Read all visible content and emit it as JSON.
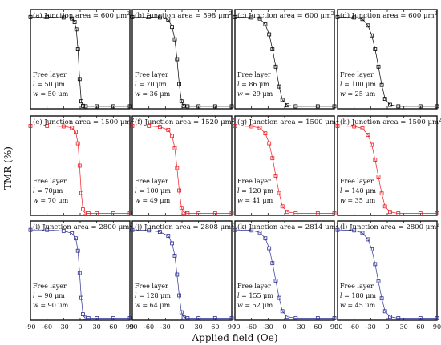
{
  "figure": {
    "ylabel": "TMR (%)",
    "xlabel": "Applied field (Oe)",
    "xticks": [
      "-90",
      "-60",
      "-30",
      "0",
      "30",
      "60",
      "90"
    ],
    "free_layer_label": "Free layer",
    "junction_prefix": "Junction area = ",
    "area_unit": "μm",
    "area_exp": "2"
  },
  "chart_data": [
    {
      "type": "scatter",
      "panel": "(a)",
      "junction_area": "600",
      "l": "50 μm",
      "w": "50 μm",
      "color": "#000000",
      "xlim": [
        -90,
        90
      ],
      "ylim": [
        0,
        200
      ],
      "series": [
        {
          "x": [
            -90,
            -60,
            -30,
            -15,
            -10,
            -7,
            -4,
            -1,
            2,
            5,
            10,
            30,
            60,
            90
          ],
          "y": [
            185,
            185,
            184,
            182,
            175,
            160,
            120,
            60,
            15,
            6,
            5,
            5,
            5,
            5
          ]
        }
      ]
    },
    {
      "type": "scatter",
      "panel": "(b)",
      "junction_area": "598",
      "l": "70 μm",
      "w": "36 μm",
      "color": "#000000",
      "xlim": [
        -90,
        90
      ],
      "ylim": [
        0,
        200
      ],
      "series": [
        {
          "x": [
            -90,
            -60,
            -40,
            -25,
            -18,
            -13,
            -9,
            -5,
            -1,
            3,
            10,
            30,
            60,
            90
          ],
          "y": [
            185,
            185,
            184,
            180,
            165,
            140,
            100,
            50,
            15,
            6,
            5,
            5,
            5,
            5
          ]
        }
      ]
    },
    {
      "type": "scatter",
      "panel": "(c)",
      "junction_area": "600",
      "l": "86 μm",
      "w": "29 μm",
      "color": "#000000",
      "xlim": [
        -90,
        90
      ],
      "ylim": [
        0,
        200
      ],
      "series": [
        {
          "x": [
            -90,
            -60,
            -45,
            -35,
            -28,
            -22,
            -16,
            -10,
            -4,
            5,
            20,
            60,
            90
          ],
          "y": [
            185,
            184,
            182,
            170,
            150,
            120,
            85,
            45,
            18,
            7,
            5,
            5,
            5
          ]
        }
      ]
    },
    {
      "type": "scatter",
      "panel": "(d)",
      "junction_area": "600",
      "l": "100 μm",
      "w": "25 μm",
      "color": "#000000",
      "xlim": [
        -90,
        90
      ],
      "ylim": [
        0,
        200
      ],
      "series": [
        {
          "x": [
            -90,
            -60,
            -45,
            -35,
            -28,
            -22,
            -16,
            -10,
            -4,
            5,
            20,
            60,
            90
          ],
          "y": [
            185,
            184,
            181,
            168,
            148,
            120,
            85,
            48,
            20,
            8,
            5,
            5,
            5
          ]
        }
      ]
    },
    {
      "type": "scatter",
      "panel": "(e)",
      "junction_area": "1500",
      "l": "70μm",
      "w": "70 μm",
      "color": "#ee1c24",
      "xlim": [
        -90,
        90
      ],
      "ylim": [
        0,
        200
      ],
      "series": [
        {
          "x": [
            -90,
            -60,
            -30,
            -15,
            -8,
            -4,
            -1,
            2,
            5,
            8,
            15,
            30,
            60,
            90
          ],
          "y": [
            180,
            180,
            179,
            176,
            168,
            145,
            100,
            45,
            12,
            5,
            4,
            4,
            4,
            4
          ]
        }
      ]
    },
    {
      "type": "scatter",
      "panel": "(f)",
      "junction_area": "1520",
      "l": "100 μm",
      "w": "49 μm",
      "color": "#ee1c24",
      "xlim": [
        -90,
        90
      ],
      "ylim": [
        0,
        200
      ],
      "series": [
        {
          "x": [
            -90,
            -60,
            -40,
            -25,
            -18,
            -13,
            -9,
            -5,
            -1,
            3,
            10,
            30,
            60,
            90
          ],
          "y": [
            180,
            180,
            178,
            172,
            160,
            135,
            95,
            50,
            15,
            6,
            4,
            4,
            4,
            4
          ]
        }
      ]
    },
    {
      "type": "scatter",
      "panel": "(g)",
      "junction_area": "1500",
      "l": "120 μm",
      "w": "41 μm",
      "color": "#ee1c24",
      "xlim": [
        -90,
        90
      ],
      "ylim": [
        0,
        200
      ],
      "series": [
        {
          "x": [
            -90,
            -60,
            -45,
            -35,
            -28,
            -22,
            -16,
            -10,
            -4,
            5,
            20,
            60,
            90
          ],
          "y": [
            180,
            179,
            176,
            165,
            145,
            115,
            80,
            45,
            18,
            7,
            4,
            4,
            4
          ]
        }
      ]
    },
    {
      "type": "scatter",
      "panel": "(h)",
      "junction_area": "1500",
      "l": "140 μm",
      "w": "35 μm",
      "color": "#ee1c24",
      "xlim": [
        -90,
        90
      ],
      "ylim": [
        0,
        200
      ],
      "series": [
        {
          "x": [
            -90,
            -60,
            -45,
            -35,
            -28,
            -22,
            -16,
            -10,
            -4,
            5,
            20,
            60,
            90
          ],
          "y": [
            180,
            179,
            175,
            162,
            142,
            112,
            78,
            44,
            18,
            7,
            4,
            4,
            4
          ]
        }
      ]
    },
    {
      "type": "scatter",
      "panel": "(i)",
      "junction_area": "2800",
      "l": "90 μm",
      "w": "90 μm",
      "color": "#2e3192",
      "xlim": [
        -90,
        90
      ],
      "ylim": [
        0,
        200
      ],
      "series": [
        {
          "x": [
            -90,
            -60,
            -30,
            -15,
            -8,
            -4,
            -1,
            2,
            5,
            8,
            15,
            30,
            60,
            90
          ],
          "y": [
            182,
            182,
            180,
            175,
            165,
            140,
            95,
            45,
            12,
            5,
            4,
            4,
            4,
            4
          ]
        }
      ]
    },
    {
      "type": "scatter",
      "panel": "(j)",
      "junction_area": "2808",
      "l": "128 μm",
      "w": "64 μm",
      "color": "#2e3192",
      "xlim": [
        -90,
        90
      ],
      "ylim": [
        0,
        200
      ],
      "series": [
        {
          "x": [
            -90,
            -60,
            -40,
            -25,
            -18,
            -13,
            -9,
            -5,
            -1,
            3,
            10,
            30,
            60,
            90
          ],
          "y": [
            182,
            181,
            178,
            170,
            155,
            130,
            92,
            50,
            16,
            6,
            4,
            4,
            4,
            4
          ]
        }
      ]
    },
    {
      "type": "scatter",
      "panel": "(k)",
      "junction_area": "2814",
      "l": "155 μm",
      "w": "52 μm",
      "color": "#2e3192",
      "xlim": [
        -90,
        90
      ],
      "ylim": [
        0,
        200
      ],
      "series": [
        {
          "x": [
            -90,
            -60,
            -45,
            -35,
            -28,
            -22,
            -16,
            -10,
            -4,
            5,
            20,
            60,
            90
          ],
          "y": [
            182,
            181,
            177,
            165,
            145,
            115,
            80,
            45,
            18,
            7,
            4,
            4,
            4
          ]
        }
      ]
    },
    {
      "type": "scatter",
      "panel": "(l)",
      "junction_area": "2800",
      "l": "180 μm",
      "w": "45 μm",
      "color": "#2e3192",
      "xlim": [
        -90,
        90
      ],
      "ylim": [
        0,
        200
      ],
      "series": [
        {
          "x": [
            -90,
            -60,
            -45,
            -35,
            -28,
            -22,
            -16,
            -10,
            -4,
            5,
            20,
            60,
            90
          ],
          "y": [
            182,
            181,
            176,
            163,
            143,
            113,
            78,
            44,
            18,
            7,
            4,
            4,
            4
          ]
        }
      ]
    }
  ]
}
